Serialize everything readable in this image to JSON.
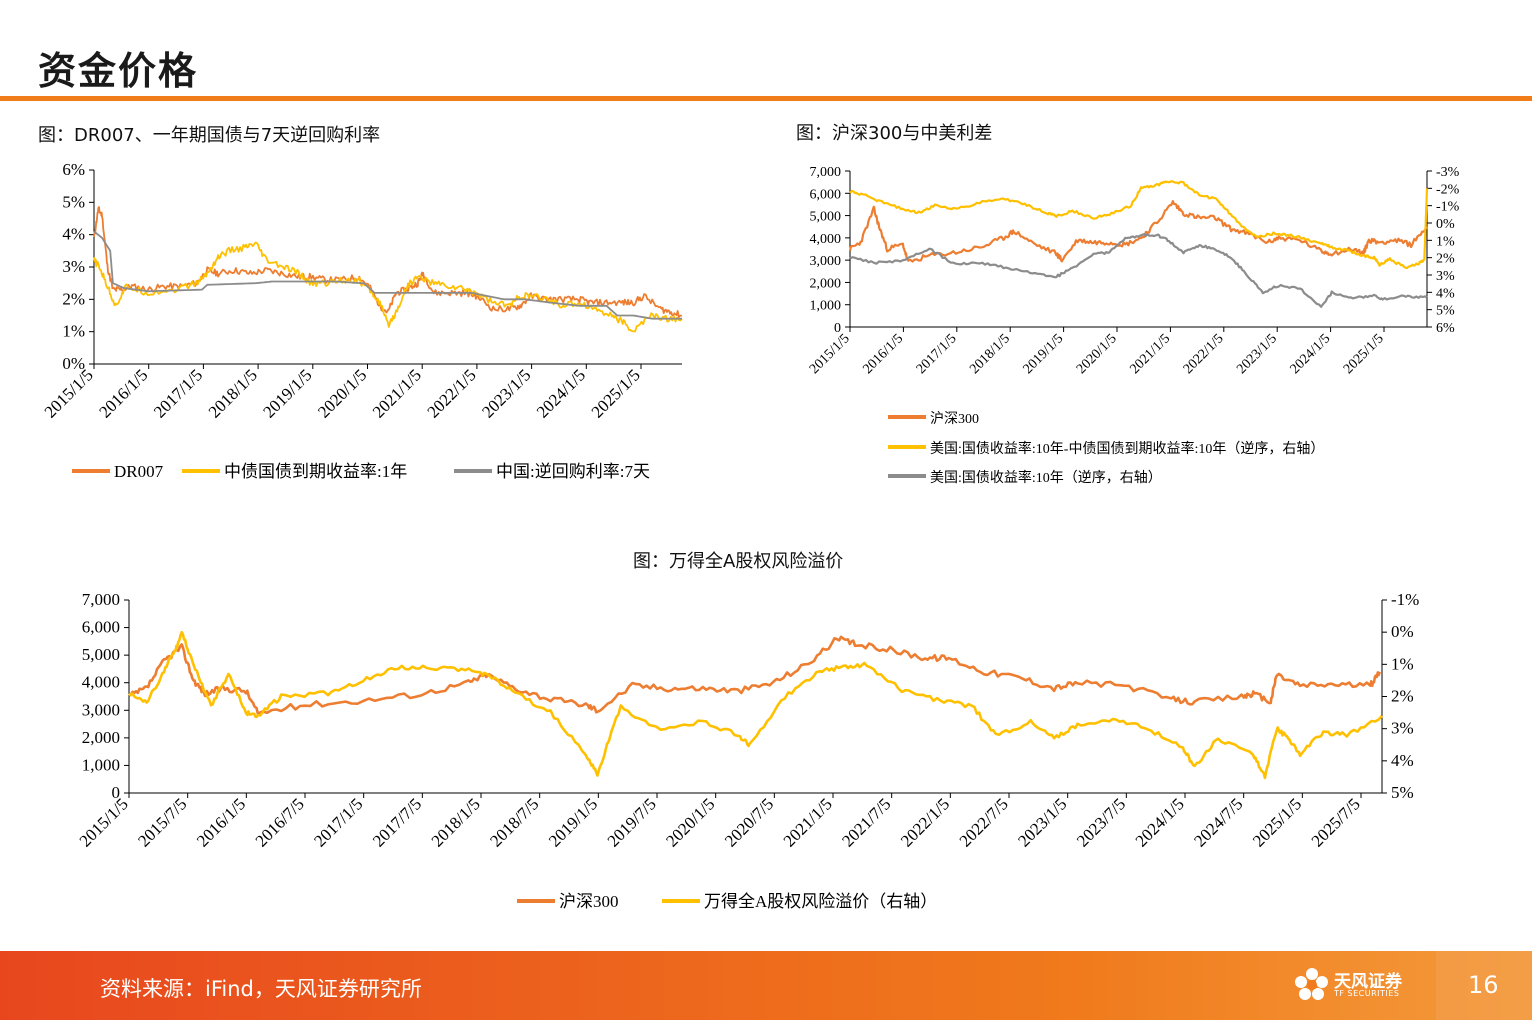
{
  "page": {
    "title": "资金价格",
    "source": "资料来源：iFind，天风证券研究所",
    "page_number": "16",
    "logo_name": "天风证券",
    "logo_sub": "TF SECURITIES"
  },
  "colors": {
    "orange": "#ED7D31",
    "yellow": "#FFC000",
    "gray": "#8C8C8C",
    "accent": "#F07D1A"
  },
  "chart_data": [
    {
      "id": "rates",
      "type": "line",
      "title": "图：DR007、一年期国债与7天逆回购利率",
      "x_ticks": [
        "2015/1/5",
        "2016/1/5",
        "2017/1/5",
        "2018/1/5",
        "2019/1/5",
        "2020/1/5",
        "2021/1/5",
        "2022/1/5",
        "2023/1/5",
        "2024/1/5",
        "2025/1/5"
      ],
      "y_ticks": [
        "6%",
        "5%",
        "4%",
        "3%",
        "2%",
        "1%",
        "0%"
      ],
      "ylim": [
        0,
        6
      ],
      "x_range": [
        2015.0,
        2025.9
      ],
      "series": [
        {
          "name": "DR007",
          "color": "orange",
          "x": [
            2015.0,
            2015.08,
            2015.15,
            2015.25,
            2015.35,
            2015.5,
            2015.7,
            2016.0,
            2016.3,
            2016.6,
            2016.9,
            2017.1,
            2017.3,
            2017.6,
            2017.9,
            2018.2,
            2018.5,
            2018.8,
            2019.0,
            2019.3,
            2019.6,
            2019.9,
            2020.1,
            2020.3,
            2020.45,
            2020.6,
            2020.8,
            2021.0,
            2021.1,
            2021.3,
            2021.6,
            2021.9,
            2022.1,
            2022.4,
            2022.7,
            2022.9,
            2023.1,
            2023.4,
            2023.7,
            2024.0,
            2024.2,
            2024.5,
            2024.8,
            2025.0,
            2025.2,
            2025.5,
            2025.7,
            2025.9
          ],
          "values": [
            3.9,
            4.8,
            4.6,
            3.0,
            2.3,
            2.3,
            2.4,
            2.3,
            2.4,
            2.4,
            2.5,
            2.9,
            2.8,
            2.9,
            2.8,
            2.9,
            2.8,
            2.7,
            2.7,
            2.6,
            2.6,
            2.7,
            2.4,
            1.8,
            1.6,
            2.2,
            2.3,
            2.5,
            2.8,
            2.2,
            2.2,
            2.2,
            2.1,
            1.7,
            1.7,
            1.8,
            2.1,
            2.0,
            2.0,
            2.0,
            1.9,
            1.9,
            1.9,
            1.9,
            2.1,
            1.7,
            1.6,
            1.5
          ]
        },
        {
          "name": "中债国债到期收益率:1年",
          "color": "yellow",
          "x": [
            2015.0,
            2015.1,
            2015.25,
            2015.4,
            2015.6,
            2016.0,
            2016.5,
            2016.9,
            2017.1,
            2017.3,
            2017.5,
            2017.8,
            2018.0,
            2018.2,
            2018.5,
            2018.8,
            2019.0,
            2019.3,
            2019.6,
            2019.9,
            2020.1,
            2020.3,
            2020.45,
            2020.6,
            2020.8,
            2021.0,
            2021.3,
            2021.6,
            2021.9,
            2022.1,
            2022.4,
            2022.7,
            2022.9,
            2023.1,
            2023.4,
            2023.7,
            2024.0,
            2024.3,
            2024.6,
            2024.8,
            2025.0,
            2025.3,
            2025.6,
            2025.9
          ],
          "values": [
            3.2,
            3.0,
            2.4,
            1.8,
            2.4,
            2.2,
            2.3,
            2.5,
            2.8,
            3.3,
            3.5,
            3.6,
            3.7,
            3.2,
            3.0,
            2.8,
            2.5,
            2.5,
            2.6,
            2.6,
            2.3,
            1.9,
            1.2,
            1.6,
            2.4,
            2.7,
            2.5,
            2.4,
            2.3,
            2.2,
            1.9,
            1.8,
            2.1,
            2.1,
            2.0,
            1.8,
            1.9,
            1.7,
            1.5,
            1.3,
            1.0,
            1.5,
            1.4,
            1.4
          ]
        },
        {
          "name": "中国:逆回购利率:7天",
          "color": "gray",
          "x": [
            2015.0,
            2015.15,
            2015.3,
            2015.35,
            2015.55,
            2016.0,
            2017.0,
            2017.1,
            2018.0,
            2018.3,
            2019.0,
            2019.5,
            2019.95,
            2020.0,
            2020.2,
            2021.0,
            2022.0,
            2022.6,
            2023.0,
            2023.45,
            2024.0,
            2024.5,
            2024.7,
            2025.0,
            2025.35,
            2025.9
          ],
          "values": [
            4.1,
            3.9,
            3.5,
            2.5,
            2.35,
            2.25,
            2.3,
            2.45,
            2.5,
            2.55,
            2.55,
            2.55,
            2.5,
            2.5,
            2.2,
            2.2,
            2.2,
            2.0,
            2.0,
            1.9,
            1.8,
            1.8,
            1.5,
            1.5,
            1.4,
            1.4
          ]
        }
      ]
    },
    {
      "id": "hs300_spread",
      "type": "line",
      "title": "图：沪深300与中美利差",
      "x_ticks": [
        "2015/1/5",
        "2016/1/5",
        "2017/1/5",
        "2018/1/5",
        "2019/1/5",
        "2020/1/5",
        "2021/1/5",
        "2022/1/5",
        "2023/1/5",
        "2024/1/5",
        "2025/1/5"
      ],
      "y_ticks": [
        "7,000",
        "6,000",
        "5,000",
        "4,000",
        "3,000",
        "2,000",
        "1,000",
        "0"
      ],
      "y2_ticks": [
        "-3%",
        "-2%",
        "-1%",
        "0%",
        "1%",
        "2%",
        "3%",
        "4%",
        "5%",
        "6%"
      ],
      "ylim": [
        0,
        7000
      ],
      "y2lim": [
        -3,
        6
      ],
      "y2_inverted": true,
      "x_range": [
        2015.0,
        2025.9
      ],
      "series": [
        {
          "name": "沪深300",
          "color": "orange",
          "axis": "left",
          "x": [
            2015.0,
            2015.2,
            2015.45,
            2015.55,
            2015.7,
            2016.0,
            2016.1,
            2016.5,
            2017.0,
            2017.5,
            2017.9,
            2018.1,
            2018.5,
            2018.9,
            2019.0,
            2019.3,
            2019.6,
            2019.9,
            2020.2,
            2020.5,
            2020.8,
            2021.1,
            2021.3,
            2021.6,
            2021.9,
            2022.2,
            2022.5,
            2022.9,
            2023.1,
            2023.5,
            2023.9,
            2024.1,
            2024.5,
            2024.7,
            2024.8,
            2025.0,
            2025.3,
            2025.6,
            2025.9
          ],
          "values": [
            3500,
            3800,
            5300,
            4500,
            3500,
            3700,
            2900,
            3200,
            3350,
            3600,
            4000,
            4300,
            3700,
            3300,
            3000,
            3900,
            3800,
            3800,
            3700,
            4000,
            4700,
            5600,
            5100,
            4900,
            4900,
            4400,
            4200,
            3800,
            4000,
            3900,
            3400,
            3300,
            3500,
            3300,
            3900,
            3800,
            3900,
            3700,
            4500
          ]
        },
        {
          "name": "美国:国债收益率:10年-中债国债到期收益率:10年（逆序，右轴）",
          "color": "yellow",
          "axis": "right",
          "x": [
            2015.0,
            2015.3,
            2015.6,
            2016.0,
            2016.3,
            2016.6,
            2017.0,
            2017.5,
            2017.9,
            2018.3,
            2018.7,
            2018.9,
            2019.2,
            2019.6,
            2019.9,
            2020.3,
            2020.5,
            2020.8,
            2021.0,
            2021.3,
            2021.6,
            2021.9,
            2022.1,
            2022.4,
            2022.7,
            2023.0,
            2023.3,
            2023.6,
            2023.9,
            2024.1,
            2024.4,
            2024.7,
            2024.9,
            2025.0,
            2025.2,
            2025.5,
            2025.75,
            2025.85,
            2025.9
          ],
          "values": [
            -1.8,
            -1.6,
            -1.2,
            -0.8,
            -0.6,
            -1.0,
            -0.8,
            -1.2,
            -1.4,
            -1.1,
            -0.6,
            -0.4,
            -0.7,
            -0.3,
            -0.5,
            -1.0,
            -2.0,
            -2.2,
            -2.4,
            -2.3,
            -1.6,
            -1.4,
            -0.8,
            0.2,
            0.8,
            0.6,
            0.7,
            0.9,
            1.2,
            1.4,
            1.6,
            1.9,
            2.0,
            2.4,
            2.1,
            2.6,
            2.3,
            2.1,
            -2.0
          ]
        },
        {
          "name": "美国:国债收益率:10年（逆序，右轴）",
          "color": "gray",
          "axis": "right",
          "x": [
            2015.0,
            2015.5,
            2016.0,
            2016.5,
            2017.0,
            2017.5,
            2018.0,
            2018.5,
            2018.9,
            2019.2,
            2019.6,
            2019.9,
            2020.2,
            2020.5,
            2020.8,
            2021.0,
            2021.3,
            2021.6,
            2021.9,
            2022.2,
            2022.5,
            2022.8,
            2023.1,
            2023.5,
            2023.9,
            2024.1,
            2024.5,
            2024.9,
            2025.1,
            2025.5,
            2025.9
          ],
          "values": [
            2.0,
            2.3,
            2.2,
            1.5,
            2.4,
            2.3,
            2.6,
            2.9,
            3.1,
            2.6,
            1.8,
            1.7,
            0.9,
            0.7,
            0.7,
            1.0,
            1.7,
            1.3,
            1.5,
            2.0,
            3.0,
            4.0,
            3.6,
            3.8,
            4.8,
            4.0,
            4.3,
            4.2,
            4.4,
            4.2,
            4.3
          ]
        }
      ]
    },
    {
      "id": "erp",
      "type": "line",
      "title": "图：万得全A股权风险溢价",
      "x_ticks": [
        "2015/1/5",
        "2015/7/5",
        "2016/1/5",
        "2016/7/5",
        "2017/1/5",
        "2017/7/5",
        "2018/1/5",
        "2018/7/5",
        "2019/1/5",
        "2019/7/5",
        "2020/1/5",
        "2020/7/5",
        "2021/1/5",
        "2021/7/5",
        "2022/1/5",
        "2022/7/5",
        "2023/1/5",
        "2023/7/5",
        "2024/1/5",
        "2024/7/5",
        "2025/1/5",
        "2025/7/5"
      ],
      "y_ticks": [
        "7,000",
        "6,000",
        "5,000",
        "4,000",
        "3,000",
        "2,000",
        "1,000",
        "0"
      ],
      "y2_ticks": [
        "-1%",
        "0%",
        "1%",
        "2%",
        "3%",
        "4%",
        "5%"
      ],
      "ylim": [
        0,
        7000
      ],
      "y2lim": [
        -1,
        5
      ],
      "y2_inverted": true,
      "x_range": [
        2015.0,
        2025.7
      ],
      "series": [
        {
          "name": "沪深300",
          "color": "orange",
          "axis": "left",
          "x": [
            2015.0,
            2015.15,
            2015.3,
            2015.45,
            2015.55,
            2015.65,
            2015.8,
            2016.0,
            2016.1,
            2016.5,
            2017.0,
            2017.5,
            2017.9,
            2018.05,
            2018.3,
            2018.6,
            2018.9,
            2019.0,
            2019.3,
            2019.6,
            2019.9,
            2020.2,
            2020.5,
            2020.8,
            2021.05,
            2021.2,
            2021.5,
            2021.8,
            2022.0,
            2022.3,
            2022.6,
            2022.9,
            2023.1,
            2023.5,
            2023.9,
            2024.1,
            2024.5,
            2024.6,
            2024.75,
            2024.8,
            2025.0,
            2025.3,
            2025.6,
            2025.68
          ],
          "values": [
            3500,
            3800,
            4800,
            5300,
            4100,
            3600,
            3800,
            3700,
            2900,
            3200,
            3350,
            3600,
            4000,
            4300,
            3800,
            3400,
            3200,
            3000,
            3900,
            3800,
            3800,
            3700,
            4000,
            4700,
            5600,
            5400,
            5200,
            4900,
            4900,
            4400,
            4200,
            3800,
            4000,
            3900,
            3400,
            3300,
            3500,
            3600,
            3300,
            4300,
            3900,
            3950,
            3900,
            4400
          ]
        },
        {
          "name": "万得全A股权风险溢价（右轴）",
          "color": "yellow",
          "axis": "right",
          "x": [
            2015.0,
            2015.15,
            2015.3,
            2015.4,
            2015.45,
            2015.55,
            2015.7,
            2015.85,
            2016.0,
            2016.1,
            2016.3,
            2016.7,
            2017.0,
            2017.3,
            2017.6,
            2017.9,
            2018.05,
            2018.3,
            2018.6,
            2018.9,
            2019.0,
            2019.2,
            2019.5,
            2019.9,
            2020.2,
            2020.3,
            2020.6,
            2020.9,
            2021.1,
            2021.3,
            2021.6,
            2021.9,
            2022.2,
            2022.4,
            2022.7,
            2022.9,
            2023.1,
            2023.4,
            2023.7,
            2024.0,
            2024.1,
            2024.3,
            2024.6,
            2024.7,
            2024.8,
            2024.9,
            2025.0,
            2025.2,
            2025.4,
            2025.7
          ],
          "values": [
            1.9,
            2.2,
            1.2,
            0.5,
            0.0,
            1.0,
            2.3,
            1.3,
            2.5,
            2.6,
            2.0,
            1.9,
            1.5,
            1.1,
            1.1,
            1.2,
            1.3,
            1.9,
            2.5,
            3.8,
            4.4,
            2.3,
            3.0,
            2.8,
            3.2,
            3.5,
            2.0,
            1.2,
            1.1,
            1.0,
            1.8,
            2.1,
            2.3,
            3.2,
            2.8,
            3.3,
            2.9,
            2.7,
            3.0,
            3.6,
            4.2,
            3.3,
            3.8,
            4.5,
            3.0,
            3.3,
            3.8,
            3.1,
            3.2,
            2.6
          ]
        }
      ]
    }
  ],
  "legends": {
    "rates": [
      "DR007",
      "中债国债到期收益率:1年",
      "中国:逆回购利率:7天"
    ],
    "hs300_spread": [
      "沪深300",
      "美国:国债收益率:10年-中债国债到期收益率:10年（逆序，右轴）",
      "美国:国债收益率:10年（逆序，右轴）"
    ],
    "erp": [
      "沪深300",
      "万得全A股权风险溢价（右轴）"
    ]
  }
}
